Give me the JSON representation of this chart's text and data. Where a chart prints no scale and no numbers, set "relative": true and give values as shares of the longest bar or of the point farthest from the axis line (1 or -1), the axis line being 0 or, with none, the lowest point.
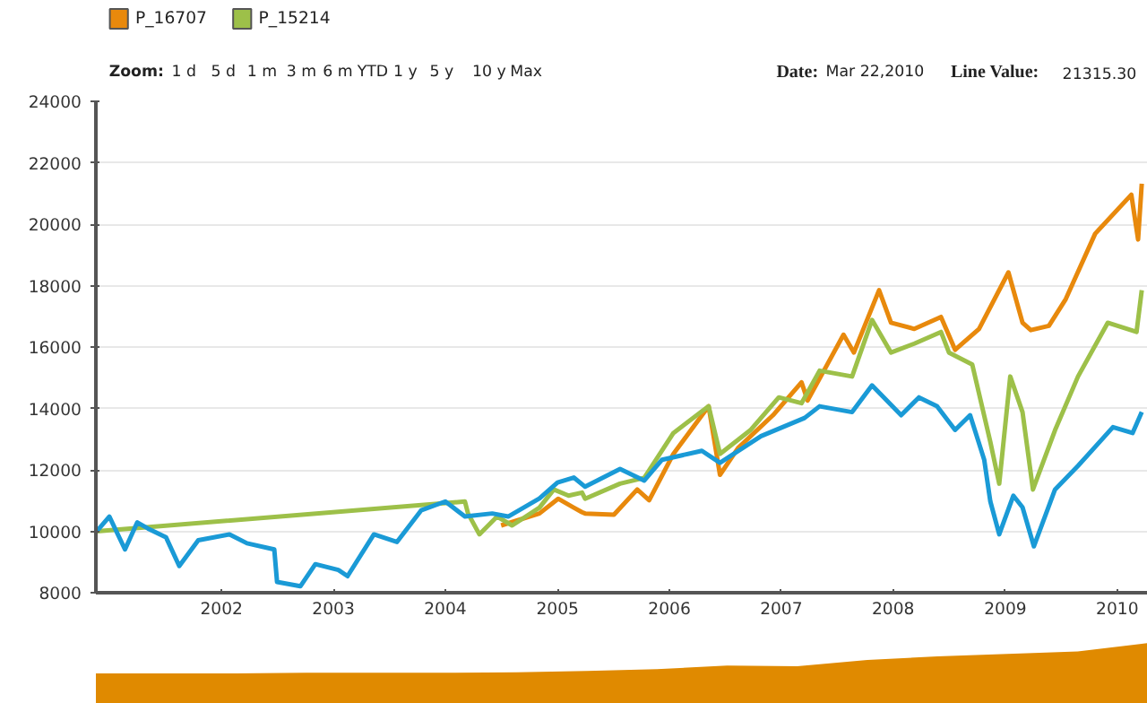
{
  "chart_data": [
    {
      "type": "line",
      "legend": "top left",
      "grid": "y",
      "xlim": [
        "2000-11-17",
        "2010-04-11"
      ],
      "xticks": [
        {
          "value": "2002-01-01",
          "label": "2002"
        },
        {
          "value": "2003-01-01",
          "label": "2003"
        },
        {
          "value": "2004-01-01",
          "label": "2004"
        },
        {
          "value": "2005-01-01",
          "label": "2005"
        },
        {
          "value": "2006-01-01",
          "label": "2006"
        },
        {
          "value": "2007-01-01",
          "label": "2007"
        },
        {
          "value": "2008-01-01",
          "label": "2008"
        },
        {
          "value": "2009-01-01",
          "label": "2009"
        },
        {
          "value": "2010-01-01",
          "label": "2010"
        }
      ],
      "ylim": [
        8000,
        24000
      ],
      "yticks": [
        8000,
        10000,
        12000,
        14000,
        16000,
        18000,
        20000,
        22000,
        24000
      ],
      "annotations": [
        "Zoom:",
        "1 d",
        "5 d",
        "1 m",
        "3 m",
        "6 m",
        "YTD",
        "1 y",
        "5 y",
        "10 y",
        "Max",
        "Date:",
        "Mar 22,2010",
        "Line Value:",
        "21315.30"
      ],
      "series": [
        {
          "name": "P_16707",
          "color": "#e8890c",
          "x": [
            "2004-07-01",
            "2004-11-03",
            "2005-01-03",
            "2005-02-23",
            "2005-03-22",
            "2005-04-01",
            "2005-07-04",
            "2005-09-18",
            "2005-10-27",
            "2006-01-14",
            "2006-05-09",
            "2006-06-15",
            "2006-08-13",
            "2006-12-05",
            "2007-03-08",
            "2007-03-28",
            "2007-07-23",
            "2007-08-26",
            "2007-11-16",
            "2007-12-25",
            "2008-03-10",
            "2008-06-05",
            "2008-07-21",
            "2008-10-07",
            "2009-01-11",
            "2009-02-26",
            "2009-03-25",
            "2009-05-23",
            "2009-07-17",
            "2009-10-21",
            "2010-02-16",
            "2010-03-10",
            "2010-03-22"
          ],
          "values": [
            10190,
            10580,
            11060,
            10770,
            10620,
            10580,
            10540,
            11360,
            11010,
            12520,
            14070,
            11840,
            12710,
            13780,
            14850,
            14260,
            16400,
            15820,
            17850,
            16790,
            16590,
            16980,
            15910,
            16590,
            18430,
            16790,
            16550,
            16690,
            17560,
            19690,
            20960,
            19500,
            21320
          ]
        },
        {
          "name": "P_15214",
          "color": "#9dc049",
          "x": [
            "2000-11-20",
            "2004-03-05",
            "2004-03-15",
            "2004-04-21",
            "2004-06-18",
            "2004-08-06",
            "2004-11-03",
            "2004-12-20",
            "2005-02-06",
            "2005-03-22",
            "2005-04-01",
            "2005-07-24",
            "2005-10-11",
            "2006-01-14",
            "2006-05-09",
            "2006-06-15",
            "2006-09-22",
            "2006-12-24",
            "2007-03-08",
            "2007-05-06",
            "2007-08-20",
            "2007-10-24",
            "2007-12-25",
            "2008-03-10",
            "2008-06-05",
            "2008-07-01",
            "2008-09-15",
            "2008-11-13",
            "2008-12-12",
            "2009-01-17",
            "2009-02-26",
            "2009-04-01",
            "2009-06-12",
            "2009-08-26",
            "2009-12-01",
            "2010-03-05",
            "2010-03-22"
          ],
          "values": [
            10000,
            10970,
            10580,
            9900,
            10480,
            10190,
            10770,
            11360,
            11160,
            11260,
            11060,
            11550,
            11740,
            13200,
            14070,
            12520,
            13290,
            14360,
            14170,
            15230,
            15040,
            16880,
            15820,
            16110,
            16490,
            15820,
            15430,
            12910,
            11550,
            15040,
            13880,
            11360,
            13290,
            15040,
            16790,
            16490,
            17850
          ]
        },
        {
          "color": "#1a9ad6",
          "x": [
            "2000-11-20",
            "2000-12-31",
            "2001-02-20",
            "2001-04-01",
            "2001-05-06",
            "2001-07-04",
            "2001-08-16",
            "2001-10-17",
            "2002-01-27",
            "2002-03-25",
            "2002-06-22",
            "2002-07-01",
            "2002-09-15",
            "2002-11-03",
            "2003-01-17",
            "2003-02-16",
            "2003-05-13",
            "2003-07-27",
            "2003-10-14",
            "2004-01-01",
            "2004-03-05",
            "2004-06-02",
            "2004-07-24",
            "2004-11-03",
            "2005-01-01",
            "2005-02-23",
            "2005-04-01",
            "2005-07-24",
            "2005-10-11",
            "2005-12-08",
            "2006-04-17",
            "2006-06-15",
            "2006-10-27",
            "2007-03-18",
            "2007-05-06",
            "2007-08-20",
            "2007-10-24",
            "2008-01-27",
            "2008-03-25",
            "2008-05-23",
            "2008-07-21",
            "2008-09-08",
            "2008-10-24",
            "2008-11-13",
            "2008-12-12",
            "2009-01-27",
            "2009-02-26",
            "2009-04-04",
            "2009-06-12",
            "2009-08-26",
            "2009-12-18",
            "2010-02-20",
            "2010-03-22"
          ],
          "values": [
            10000,
            10480,
            9410,
            10290,
            10090,
            9800,
            8870,
            9710,
            9900,
            9610,
            9410,
            8350,
            8210,
            8930,
            8740,
            8540,
            9900,
            9650,
            10680,
            10970,
            10480,
            10580,
            10480,
            11070,
            11590,
            11750,
            11450,
            12030,
            11650,
            12330,
            12620,
            12230,
            13100,
            13690,
            14070,
            13880,
            14750,
            13780,
            14360,
            14070,
            13300,
            13780,
            12330,
            10970,
            9900,
            11160,
            10780,
            9510,
            11360,
            12130,
            13390,
            13200,
            13880
          ]
        }
      ]
    },
    {
      "type": "area",
      "relative": true,
      "color": "#e08a00",
      "categories": [
        null,
        null,
        null,
        null,
        null,
        null,
        null,
        null,
        null,
        null,
        null,
        null,
        null,
        null,
        null,
        null
      ],
      "values": [
        0.5,
        0.5,
        0.5,
        0.51,
        0.51,
        0.51,
        0.52,
        0.54,
        0.57,
        0.63,
        0.62,
        0.72,
        0.78,
        0.82,
        0.86,
        1
      ]
    }
  ]
}
